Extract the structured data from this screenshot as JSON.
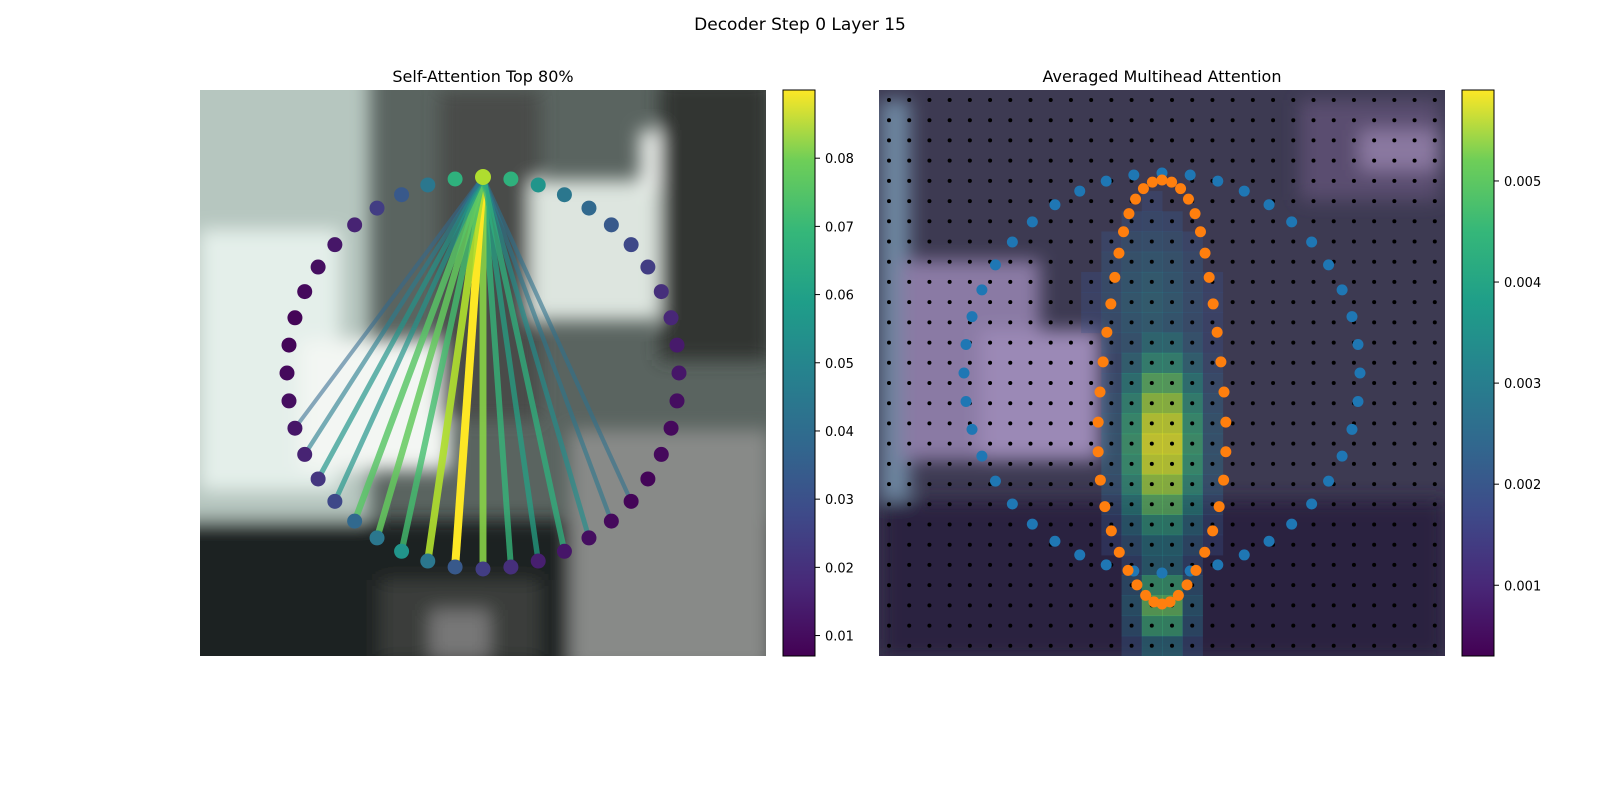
{
  "figure": {
    "title": "Decoder Step 0 Layer 15"
  },
  "left_panel": {
    "title": "Self-Attention Top 80%",
    "colorbar_ticks": [
      "0.01",
      "0.02",
      "0.03",
      "0.04",
      "0.05",
      "0.06",
      "0.07",
      "0.08"
    ]
  },
  "right_panel": {
    "title": "Averaged Multihead Attention",
    "colorbar_ticks": [
      "0.001",
      "0.002",
      "0.003",
      "0.004",
      "0.005"
    ]
  },
  "chart_data": [
    {
      "type": "scatter",
      "title": "Self-Attention Top 80%",
      "description_source_query_point": 0,
      "colormap": "viridis",
      "colorbar_range": [
        0.007,
        0.09
      ],
      "points_attention": [
        0.08,
        0.06,
        0.05,
        0.04,
        0.035,
        0.03,
        0.025,
        0.022,
        0.018,
        0.016,
        0.013,
        0.012,
        0.01,
        0.009,
        0.009,
        0.008,
        0.008,
        0.009,
        0.01,
        0.012,
        0.014,
        0.018,
        0.022,
        0.03,
        0.04,
        0.05,
        0.04,
        0.035,
        0.025,
        0.02,
        0.015,
        0.012,
        0.01,
        0.009,
        0.008,
        0.008,
        0.009,
        0.01,
        0.012,
        0.015,
        0.022,
        0.03,
        0.04,
        0.06
      ],
      "edge_targets": [
        20,
        21,
        22,
        23,
        24,
        25,
        26,
        27,
        28,
        29,
        16,
        17,
        18,
        19,
        30,
        31
      ],
      "edge_weights": [
        0.055,
        0.062,
        0.075,
        0.09,
        0.08,
        0.065,
        0.07,
        0.068,
        0.05,
        0.05,
        0.038,
        0.04,
        0.048,
        0.06,
        0.042,
        0.035
      ],
      "colors": {
        "low": "#440154",
        "mid": "#21918c",
        "high": "#fde725"
      }
    },
    {
      "type": "heatmap",
      "title": "Averaged Multihead Attention",
      "colormap": "viridis",
      "colorbar_range": [
        0.0003,
        0.0059
      ],
      "grid_size": [
        28,
        28
      ],
      "overlay_series": [
        {
          "color": "#1f77b4"
        },
        {
          "color": "#ff7f0e"
        }
      ]
    }
  ]
}
